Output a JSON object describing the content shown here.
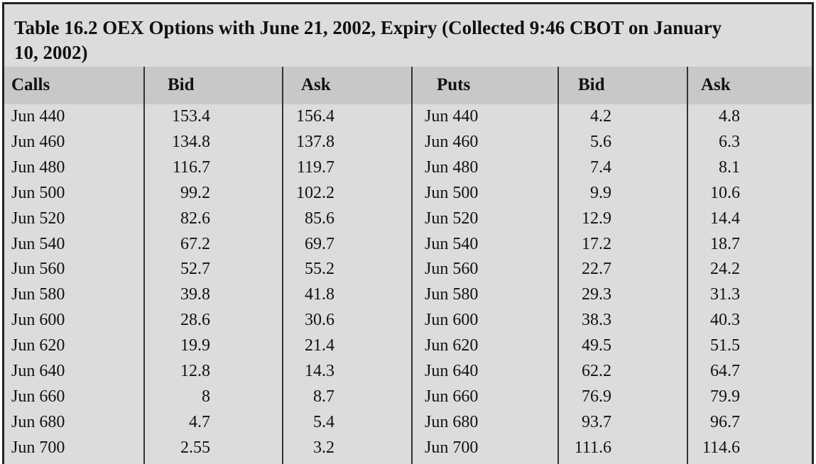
{
  "title": "Table 16.2  OEX Options with June 21, 2002, Expiry (Collected 9:46 CBOT on January 10, 2002)",
  "headers": [
    "Calls",
    "Bid",
    "Ask",
    "Puts",
    "Bid",
    "Ask"
  ],
  "rows": [
    [
      "Jun 440",
      "153.4",
      "156.4",
      "Jun 440",
      "4.2",
      "4.8"
    ],
    [
      "Jun 460",
      "134.8",
      "137.8",
      "Jun 460",
      "5.6",
      "6.3"
    ],
    [
      "Jun 480",
      "116.7",
      "119.7",
      "Jun 480",
      "7.4",
      "8.1"
    ],
    [
      "Jun 500",
      "99.2",
      "102.2",
      "Jun 500",
      "9.9",
      "10.6"
    ],
    [
      "Jun 520",
      "82.6",
      "85.6",
      "Jun 520",
      "12.9",
      "14.4"
    ],
    [
      "Jun 540",
      "67.2",
      "69.7",
      "Jun 540",
      "17.2",
      "18.7"
    ],
    [
      "Jun 560",
      "52.7",
      "55.2",
      "Jun 560",
      "22.7",
      "24.2"
    ],
    [
      "Jun 580",
      "39.8",
      "41.8",
      "Jun 580",
      "29.3",
      "31.3"
    ],
    [
      "Jun 600",
      "28.6",
      "30.6",
      "Jun 600",
      "38.3",
      "40.3"
    ],
    [
      "Jun 620",
      "19.9",
      "21.4",
      "Jun 620",
      "49.5",
      "51.5"
    ],
    [
      "Jun 640",
      "12.8",
      "14.3",
      "Jun 640",
      "62.2",
      "64.7"
    ],
    [
      "Jun 660",
      "8",
      "8.7",
      "Jun 660",
      "76.9",
      "79.9"
    ],
    [
      "Jun 680",
      "4.7",
      "5.4",
      "Jun 680",
      "93.7",
      "96.7"
    ],
    [
      "Jun 700",
      "2.55",
      "3.2",
      "Jun 700",
      "111.6",
      "114.6"
    ]
  ]
}
